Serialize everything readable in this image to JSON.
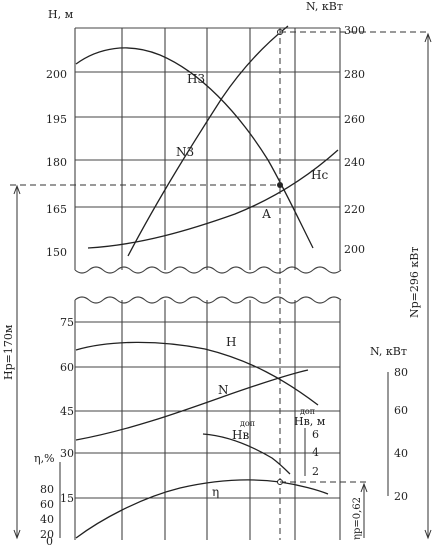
{
  "upper": {
    "h_axis_title": "H, м",
    "n_axis_title": "N, кВт",
    "h_ticks": [
      "200",
      "195",
      "180",
      "165",
      "150"
    ],
    "n_ticks": [
      "300",
      "280",
      "260",
      "240",
      "220",
      "200"
    ],
    "curve_labels": {
      "h3": "Н3",
      "n3": "N3",
      "hc": "Нс",
      "point_a": "А"
    }
  },
  "lower": {
    "h_ticks": [
      "75",
      "60",
      "45",
      "30",
      "15"
    ],
    "eta_axis_title": "η,%",
    "eta_ticks": [
      "80",
      "60",
      "40",
      "20",
      "0"
    ],
    "n_axis_title": "N, кВт",
    "n_ticks": [
      "80",
      "60",
      "40",
      "20"
    ],
    "hv_axis_title": "Нв, м",
    "hv_sup": "доп",
    "hv_ticks": [
      "6",
      "4",
      "2"
    ],
    "curve_labels": {
      "h": "Н",
      "n": "N",
      "hv": "Нв",
      "hv_sup": "доп",
      "eta": "η"
    }
  },
  "annotations": {
    "hp": "Нр=170м",
    "np": "Nр=296 кВт",
    "eta_p": "ηр=0,62"
  }
}
